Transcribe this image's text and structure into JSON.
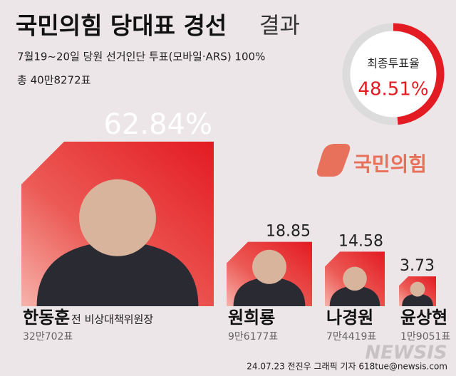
{
  "chart_data": {
    "type": "bar",
    "title": "국민의힘 당대표 경선",
    "title_suffix": "결과",
    "subtitle": "7월19~20일 당원 선거인단 투표(모바일·ARS) 100%",
    "total": "총 40만8272표",
    "turnout": {
      "label": "최종투표율",
      "value": 48.51,
      "value_label": "48.51%"
    },
    "logo": "국민의힘",
    "categories": [
      "한동훈",
      "원희룡",
      "나경원",
      "윤상현"
    ],
    "annotation": "전 비상대책위원장",
    "values": [
      62.84,
      18.85,
      14.58,
      3.73
    ],
    "value_labels": [
      "62.84%",
      "18.85",
      "14.58",
      "3.73"
    ],
    "votes": [
      "32만702표",
      "9만6177표",
      "7만4419표",
      "1만9051표"
    ],
    "color": "#e31b23",
    "credit": "24.07.23 전진우 그래픽 기자 618tue@newsis.com",
    "watermark": "NEWSIS"
  }
}
